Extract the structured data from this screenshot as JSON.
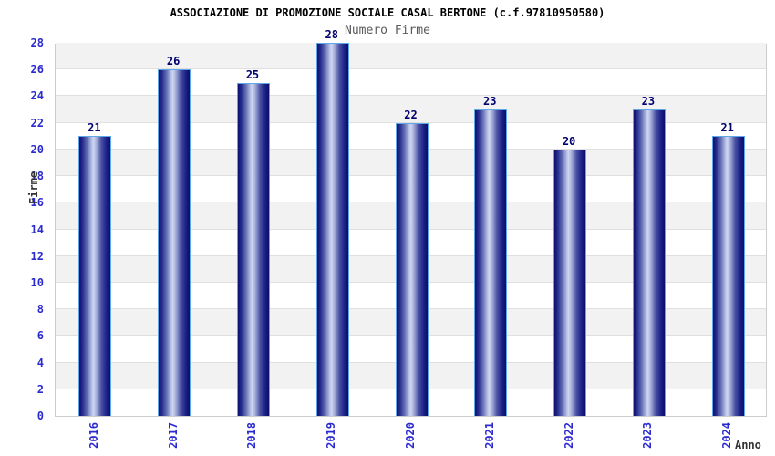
{
  "header": {
    "title": "ASSOCIAZIONE DI PROMOZIONE SOCIALE CASAL BERTONE (c.f.97810950580)",
    "subtitle": "Numero Firme"
  },
  "chart_data": {
    "type": "bar",
    "title": "ASSOCIAZIONE DI PROMOZIONE SOCIALE CASAL BERTONE (c.f.97810950580)",
    "subtitle": "Numero Firme",
    "categories": [
      "2016",
      "2017",
      "2018",
      "2019",
      "2020",
      "2021",
      "2022",
      "2023",
      "2024"
    ],
    "values": [
      21,
      26,
      25,
      28,
      22,
      23,
      20,
      23,
      21
    ],
    "xlabel": "Anno",
    "ylabel": "Firme",
    "ylim": [
      0,
      28
    ],
    "ytick_step": 2,
    "yticks": [
      0,
      2,
      4,
      6,
      8,
      10,
      12,
      14,
      16,
      18,
      20,
      22,
      24,
      26,
      28
    ],
    "grid": true,
    "legend_position": "none",
    "colors": {
      "bar_dark": "#0e0e6e",
      "bar_light": "#ced6f1",
      "bar_border": "#5fa8e8",
      "axis_text": "#2a2ad0",
      "value_text": "#00006e",
      "band_gray": "#f2f2f2",
      "gridline": "#e0e0e0",
      "plot_border": "#cccccc",
      "title_text": "#000000",
      "subtitle_text": "#5a5a5a"
    }
  }
}
